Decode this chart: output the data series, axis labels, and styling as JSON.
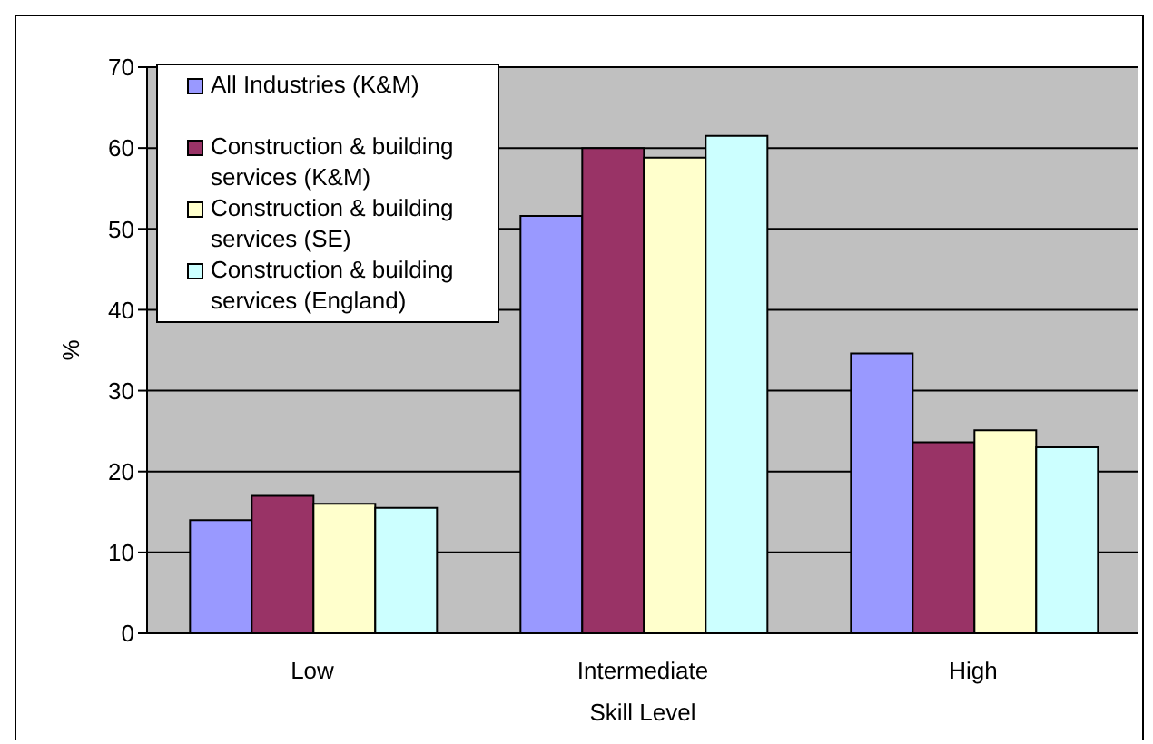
{
  "chart_data": {
    "type": "bar",
    "xlabel": "Skill Level",
    "ylabel": "%",
    "categories": [
      "Low",
      "Intermediate",
      "High"
    ],
    "series": [
      {
        "name": "All Industries (K&M)",
        "color": "#9999ff",
        "values": [
          14.0,
          51.6,
          34.6
        ]
      },
      {
        "name": "Construction & building services (K&M)",
        "color": "#993366",
        "values": [
          17.0,
          60.0,
          23.6
        ]
      },
      {
        "name": "Construction & building services (SE)",
        "color": "#ffffcc",
        "values": [
          16.0,
          58.8,
          25.1
        ]
      },
      {
        "name": "Construction & building services (England)",
        "color": "#ccffff",
        "values": [
          15.5,
          61.5,
          23.0
        ]
      }
    ],
    "ylim": [
      0,
      70
    ],
    "yticks": [
      0,
      10,
      20,
      30,
      40,
      50,
      60,
      70
    ],
    "grid": "y",
    "legend": "top left"
  }
}
